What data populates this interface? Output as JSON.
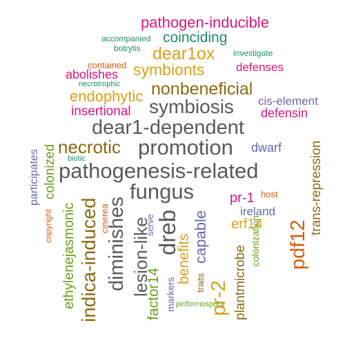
{
  "palette": {
    "gray": "#5a5a5a",
    "brown": "#8b6a12",
    "mustard": "#d7a11a",
    "pink": "#d9187a",
    "teal": "#1f8b6a",
    "green": "#6a9e20",
    "purple": "#6b67a9",
    "orange": "#d35f14"
  },
  "words": [
    {
      "text": "pathogen-inducible",
      "color": "pink"
    },
    {
      "text": "accompanied",
      "color": "teal"
    },
    {
      "text": "coinciding",
      "color": "teal"
    },
    {
      "text": "botrytis",
      "color": "teal"
    },
    {
      "text": "dear1ox",
      "color": "mustard"
    },
    {
      "text": "investigate",
      "color": "teal"
    },
    {
      "text": "contained",
      "color": "orange"
    },
    {
      "text": "abolishes",
      "color": "pink"
    },
    {
      "text": "symbionts",
      "color": "mustard"
    },
    {
      "text": "defenses",
      "color": "pink"
    },
    {
      "text": "necrotrophic",
      "color": "teal"
    },
    {
      "text": "nonbeneficial",
      "color": "brown"
    },
    {
      "text": "endophytic",
      "color": "mustard"
    },
    {
      "text": "cis-element",
      "color": "purple"
    },
    {
      "text": "symbiosis",
      "color": "gray"
    },
    {
      "text": "insertional",
      "color": "pink"
    },
    {
      "text": "defensin",
      "color": "pink"
    },
    {
      "text": "dear1-dependent",
      "color": "gray"
    },
    {
      "text": "necrotic",
      "color": "brown"
    },
    {
      "text": "promotion",
      "color": "gray"
    },
    {
      "text": "dwarf",
      "color": "purple"
    },
    {
      "text": "biotic",
      "color": "teal"
    },
    {
      "text": "pathogenesis-related",
      "color": "gray"
    },
    {
      "text": "fungus",
      "color": "gray"
    },
    {
      "text": "pr-1",
      "color": "pink"
    },
    {
      "text": "host",
      "color": "orange"
    },
    {
      "text": "ireland",
      "color": "purple"
    },
    {
      "text": "erf14",
      "color": "mustard"
    },
    {
      "text": "participates",
      "color": "purple"
    },
    {
      "text": "colonized",
      "color": "green"
    },
    {
      "text": "ethylenejasmonic",
      "color": "green"
    },
    {
      "text": "copyright",
      "color": "orange"
    },
    {
      "text": "indica-induced",
      "color": "brown"
    },
    {
      "text": "cinerea",
      "color": "orange"
    },
    {
      "text": "diminishes",
      "color": "gray"
    },
    {
      "text": "lesion-like",
      "color": "gray"
    },
    {
      "text": "serve",
      "color": "purple"
    },
    {
      "text": "dreb",
      "color": "gray"
    },
    {
      "text": "factor14",
      "color": "green"
    },
    {
      "text": "markers",
      "color": "purple"
    },
    {
      "text": "benefits",
      "color": "mustard"
    },
    {
      "text": "traits",
      "color": "brown"
    },
    {
      "text": "capable",
      "color": "purple"
    },
    {
      "text": "pr-2",
      "color": "mustard"
    },
    {
      "text": "plantmicrobe",
      "color": "brown"
    },
    {
      "text": "colonization",
      "color": "green"
    },
    {
      "text": "pdf12",
      "color": "orange"
    },
    {
      "text": "trans-repression",
      "color": "brown"
    },
    {
      "text": "piriformospora",
      "color": "green"
    }
  ]
}
